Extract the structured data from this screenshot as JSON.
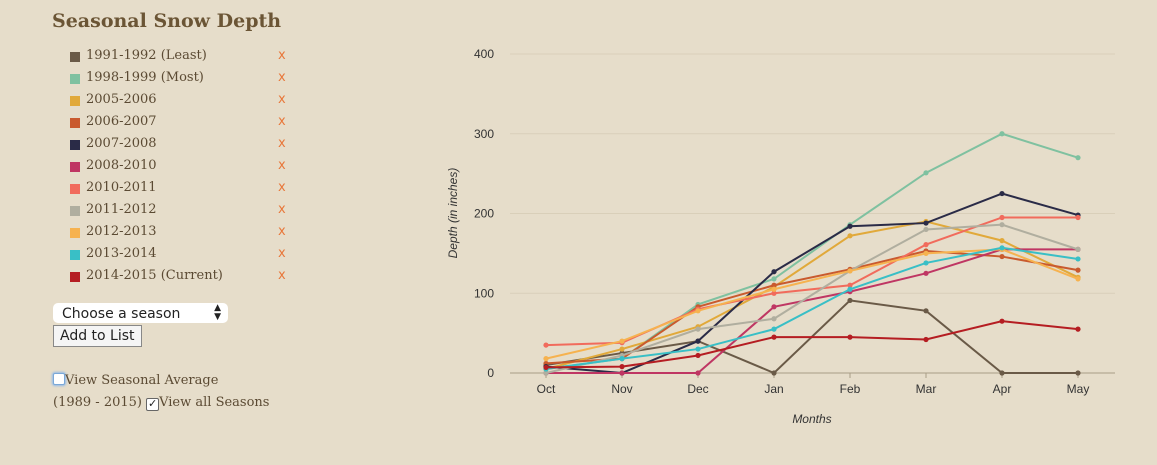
{
  "page": {
    "title": "Seasonal Snow Depth",
    "select_placeholder": "Choose a season",
    "add_button": "Add to List",
    "avg_label": "View Seasonal Average",
    "avg_range": "(1989 - 2015)",
    "all_label": "View all Seasons",
    "remove_glyph": "x",
    "checkmark": "✓"
  },
  "chart_data": {
    "type": "line",
    "title": "",
    "xlabel": "Months",
    "ylabel": "Depth (in inches)",
    "ylim": [
      0,
      400
    ],
    "yticks": [
      0,
      100,
      200,
      300,
      400
    ],
    "categories": [
      "Oct",
      "Nov",
      "Dec",
      "Jan",
      "Feb",
      "Mar",
      "Apr",
      "May"
    ],
    "series": [
      {
        "name": "1991-1992 (Least)",
        "color": "#6a5a47",
        "values": [
          10,
          25,
          40,
          0,
          91,
          78,
          0,
          0
        ]
      },
      {
        "name": "1998-1999 (Most)",
        "color": "#7fc1a0",
        "values": [
          5,
          18,
          86,
          118,
          186,
          251,
          300,
          270
        ]
      },
      {
        "name": "2005-2006",
        "color": "#e1a93a",
        "values": [
          5,
          30,
          58,
          108,
          172,
          190,
          166,
          120
        ]
      },
      {
        "name": "2006-2007",
        "color": "#c95a2e",
        "values": [
          12,
          18,
          83,
          110,
          130,
          153,
          146,
          129
        ]
      },
      {
        "name": "2007-2008",
        "color": "#2a2b47",
        "values": [
          8,
          0,
          40,
          127,
          184,
          188,
          225,
          198
        ]
      },
      {
        "name": "2008-2010",
        "color": "#bf3663",
        "values": [
          0,
          0,
          0,
          83,
          102,
          125,
          155,
          155
        ]
      },
      {
        "name": "2010-2011",
        "color": "#f16b5c",
        "values": [
          35,
          38,
          80,
          100,
          110,
          161,
          195,
          195
        ]
      },
      {
        "name": "2011-2012",
        "color": "#b0ae9f",
        "values": [
          0,
          22,
          55,
          68,
          128,
          180,
          186,
          155
        ]
      },
      {
        "name": "2012-2013",
        "color": "#f6b24f",
        "values": [
          18,
          40,
          78,
          105,
          128,
          150,
          155,
          118
        ]
      },
      {
        "name": "2013-2014",
        "color": "#39bfc6",
        "values": [
          5,
          18,
          30,
          55,
          105,
          138,
          157,
          143
        ]
      },
      {
        "name": "2014-2015 (Current)",
        "color": "#b51d22",
        "values": [
          7,
          8,
          22,
          45,
          45,
          42,
          65,
          55
        ]
      }
    ]
  }
}
